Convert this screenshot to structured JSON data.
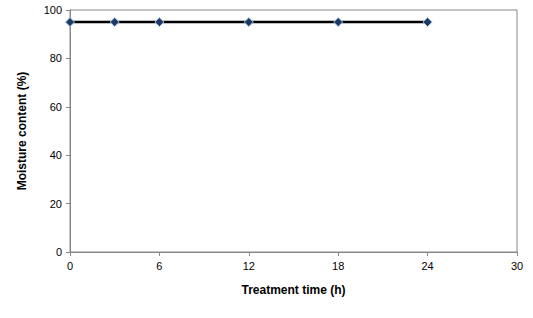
{
  "chart_data": {
    "type": "line",
    "x_label": "Treatment time (h)",
    "y_label": "Moisture content (%)",
    "series": [
      {
        "name": "Moisture content",
        "color": "#000000",
        "marker": "diamond",
        "line_style": "solid",
        "x": [
          0,
          3,
          6,
          12,
          18,
          24
        ],
        "values": [
          95,
          95,
          95,
          95,
          95,
          95
        ]
      }
    ],
    "xlim": [
      0,
      30
    ],
    "xticks": [
      0,
      6,
      12,
      18,
      24,
      30
    ],
    "ylim": [
      0,
      100
    ],
    "yticks": [
      0,
      20,
      40,
      60,
      80,
      100
    ],
    "grid": false
  }
}
